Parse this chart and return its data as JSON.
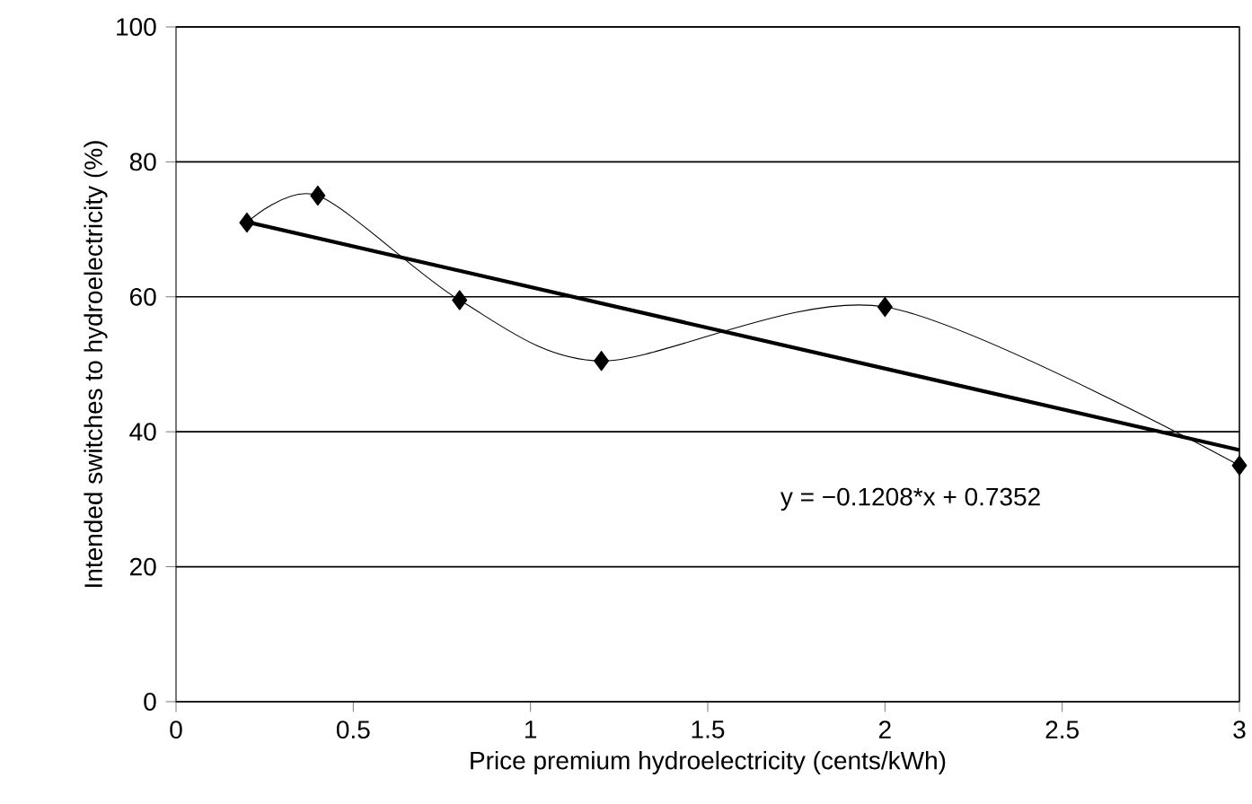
{
  "chart_data": {
    "type": "line",
    "xlabel": "Price premium hydroelectricity (cents/kWh)",
    "ylabel": "Intended switches to hydroelectricity (%)",
    "series": [
      {
        "x": [
          0.2,
          0.4,
          0.8,
          1.2,
          2.0,
          3.0
        ],
        "values": [
          71,
          75,
          59.5,
          50.5,
          58.5,
          35
        ],
        "color": "#000000",
        "marker": "diamond"
      },
      {
        "x": [
          0.2,
          3.0
        ],
        "values": [
          71.1,
          37.3
        ],
        "color": "#000000",
        "marker": "none"
      }
    ],
    "xlim": [
      0,
      3
    ],
    "xticks": [
      0,
      0.5,
      1,
      1.5,
      2,
      2.5,
      3
    ],
    "ylim": [
      0,
      100
    ],
    "yticks": [
      0,
      20,
      40,
      60,
      80,
      100
    ],
    "grid": "y",
    "annotations": [
      "y = −0.1208*x + 0.7352"
    ]
  }
}
